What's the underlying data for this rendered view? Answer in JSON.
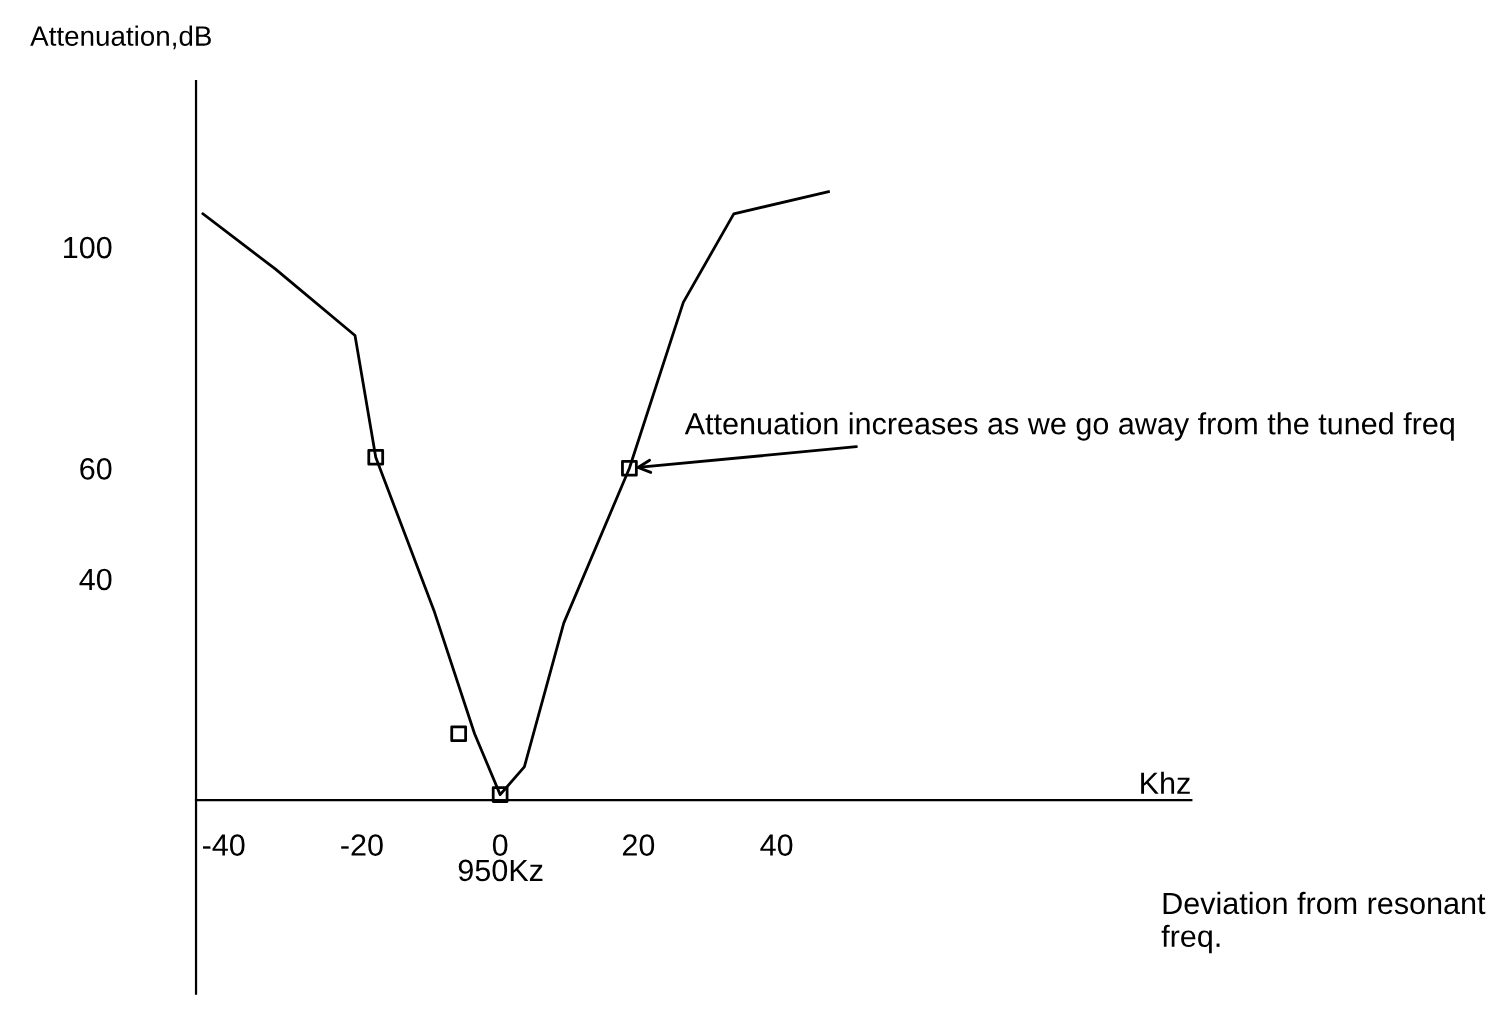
{
  "chart_data": {
    "type": "line",
    "ylabel": "Attenuation,dB",
    "xlabel": "Khz",
    "series": [
      {
        "color": "#000000",
        "x": [
          -43,
          -32.5,
          -21,
          -18,
          -9.5,
          -3.7,
          0,
          3.5,
          9.2,
          18.7,
          26.5,
          33.8,
          47.5
        ],
        "values": [
          106,
          96,
          84,
          62,
          34,
          12,
          1,
          6,
          32,
          60,
          90,
          106,
          110
        ]
      },
      {
        "type": "scatter",
        "color": "#000000",
        "marker": "square",
        "x": [
          -18,
          -6,
          0,
          18.7
        ],
        "values": [
          62,
          12,
          1,
          60
        ]
      }
    ],
    "xlim": [
      -44,
      100
    ],
    "ylim": [
      -35,
      130
    ],
    "xticks": [
      -40,
      -20,
      0,
      20,
      40
    ],
    "yticks": [
      40,
      60,
      100
    ],
    "grid": false,
    "legend": false,
    "annotations": [
      {
        "text": "Attenuation increases as we go away from the tuned freq",
        "x": 18.7,
        "y": 60
      },
      "950Kz",
      "Deviation from resonant\nfreq."
    ]
  }
}
